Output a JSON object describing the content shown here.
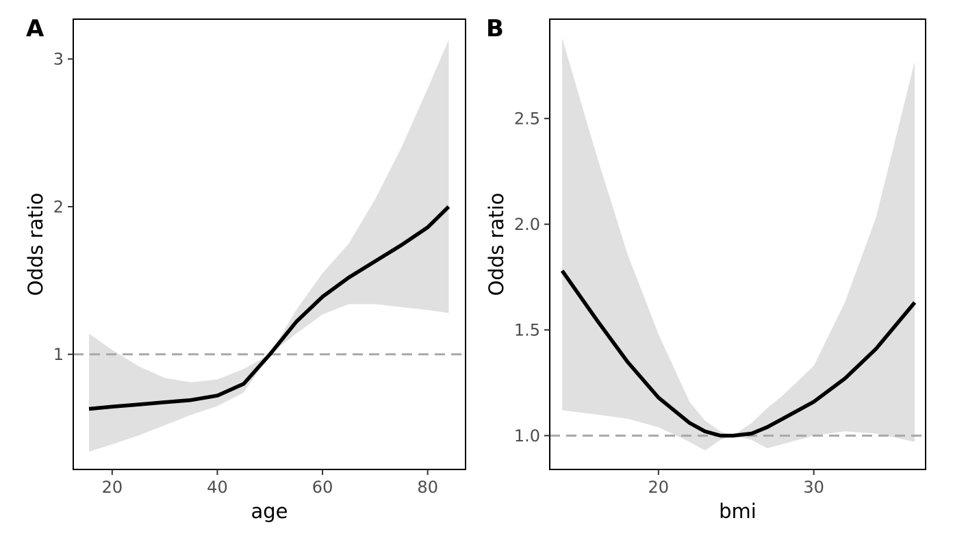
{
  "chart_data": [
    {
      "type": "line",
      "panel_label": "A",
      "xlabel": "age",
      "ylabel": "Odds ratio",
      "xlim": [
        12.6,
        87.2
      ],
      "ylim": [
        0.22,
        3.27
      ],
      "xticks": [
        20,
        40,
        60,
        80
      ],
      "yticks": [
        1,
        2,
        3
      ],
      "xtick_labels": [
        "20",
        "40",
        "60",
        "80"
      ],
      "ytick_labels": [
        "1",
        "2",
        "3"
      ],
      "reference_line": 1,
      "grid": false,
      "legend": "none",
      "line_color": "#000000",
      "band_color": "#e0e0e0",
      "ref_color": "#a8a8a8",
      "x": [
        15.6,
        20,
        25,
        30,
        35,
        40,
        45,
        50,
        55,
        60,
        65,
        70,
        75,
        80,
        84
      ],
      "series": [
        {
          "values": [
            0.63,
            0.645,
            0.66,
            0.675,
            0.69,
            0.72,
            0.8,
            1.0,
            1.22,
            1.39,
            1.52,
            1.63,
            1.74,
            1.86,
            2.0
          ]
        }
      ],
      "ci_lower": [
        0.34,
        0.39,
        0.45,
        0.52,
        0.59,
        0.65,
        0.74,
        1.0,
        1.14,
        1.27,
        1.34,
        1.34,
        1.32,
        1.3,
        1.28
      ],
      "ci_upper": [
        1.14,
        1.03,
        0.92,
        0.84,
        0.81,
        0.83,
        0.9,
        1.0,
        1.3,
        1.55,
        1.75,
        2.05,
        2.4,
        2.8,
        3.13
      ]
    },
    {
      "type": "line",
      "panel_label": "B",
      "xlabel": "bmi",
      "ylabel": "Odds ratio",
      "xlim": [
        13.0,
        37.2
      ],
      "ylim": [
        0.84,
        2.97
      ],
      "xticks": [
        20,
        30
      ],
      "yticks": [
        1.0,
        1.5,
        2.0,
        2.5
      ],
      "xtick_labels": [
        "20",
        "30"
      ],
      "ytick_labels": [
        "1.0",
        "1.5",
        "2.0",
        "2.5"
      ],
      "reference_line": 1,
      "grid": false,
      "legend": "none",
      "line_color": "#000000",
      "band_color": "#e0e0e0",
      "ref_color": "#a8a8a8",
      "x": [
        13.8,
        16,
        18,
        20,
        22,
        23,
        24,
        24.8,
        26,
        27,
        28,
        30,
        32,
        34,
        36.5
      ],
      "series": [
        {
          "values": [
            1.78,
            1.55,
            1.35,
            1.18,
            1.06,
            1.02,
            1.0,
            1.0,
            1.01,
            1.04,
            1.08,
            1.16,
            1.27,
            1.41,
            1.63
          ]
        }
      ],
      "ci_lower": [
        1.12,
        1.1,
        1.08,
        1.04,
        0.97,
        0.93,
        0.98,
        1.0,
        0.98,
        0.94,
        0.96,
        1.0,
        1.02,
        1.01,
        0.97
      ],
      "ci_upper": [
        2.88,
        2.33,
        1.86,
        1.48,
        1.16,
        1.07,
        1.02,
        1.0,
        1.06,
        1.13,
        1.19,
        1.33,
        1.63,
        2.03,
        2.77
      ]
    }
  ]
}
